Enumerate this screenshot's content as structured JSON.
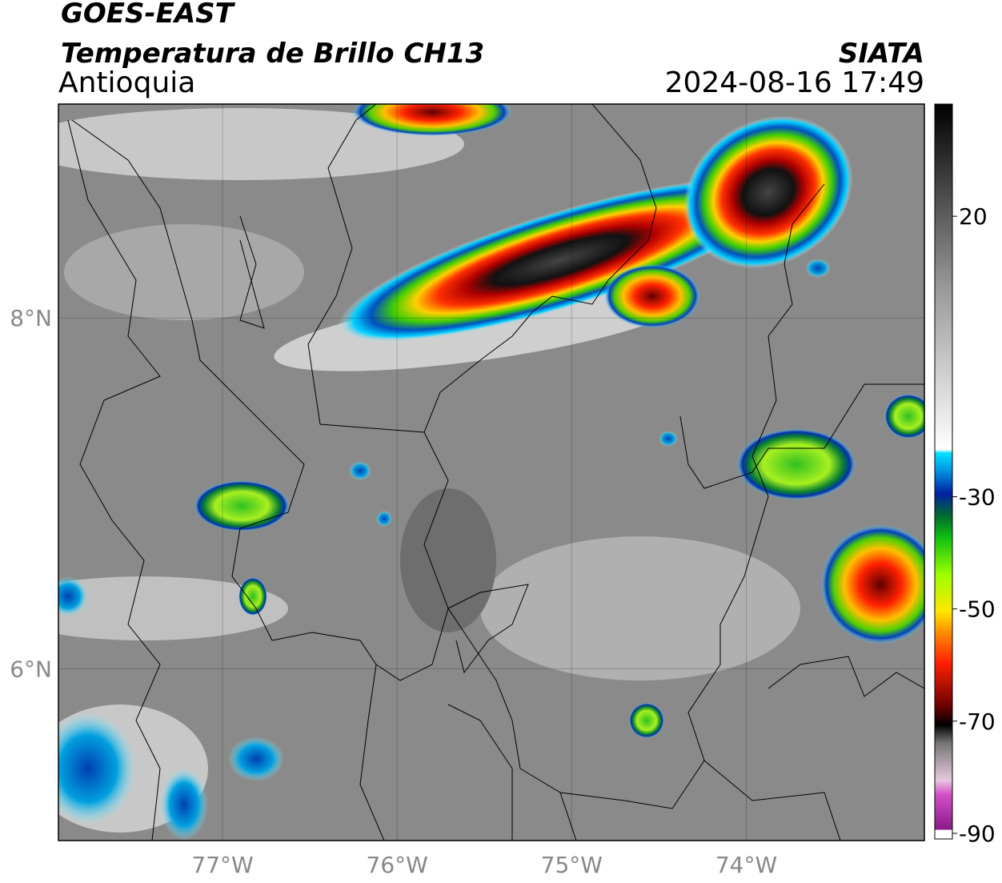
{
  "map": {
    "title": "GOES-EAST",
    "subtitle": "Temperatura de Brillo CH13",
    "region": "Antioquia",
    "source": "SIATA",
    "datetime": "2024-08-16 17:49",
    "lonlim": [
      -77.94,
      -72.98
    ],
    "latlim": [
      5.02,
      9.22
    ],
    "xticks": [
      {
        "value": -77,
        "label": "77°W"
      },
      {
        "value": -76,
        "label": "76°W"
      },
      {
        "value": -75,
        "label": "75°W"
      },
      {
        "value": -74,
        "label": "74°W"
      }
    ],
    "yticks": [
      {
        "value": 8,
        "label": "8°N"
      },
      {
        "value": 6,
        "label": "6°N"
      }
    ],
    "grid": true,
    "colorbar": {
      "lim": [
        -91,
        40
      ],
      "ticks": [
        20,
        -30,
        -50,
        -70,
        -90
      ]
    }
  }
}
